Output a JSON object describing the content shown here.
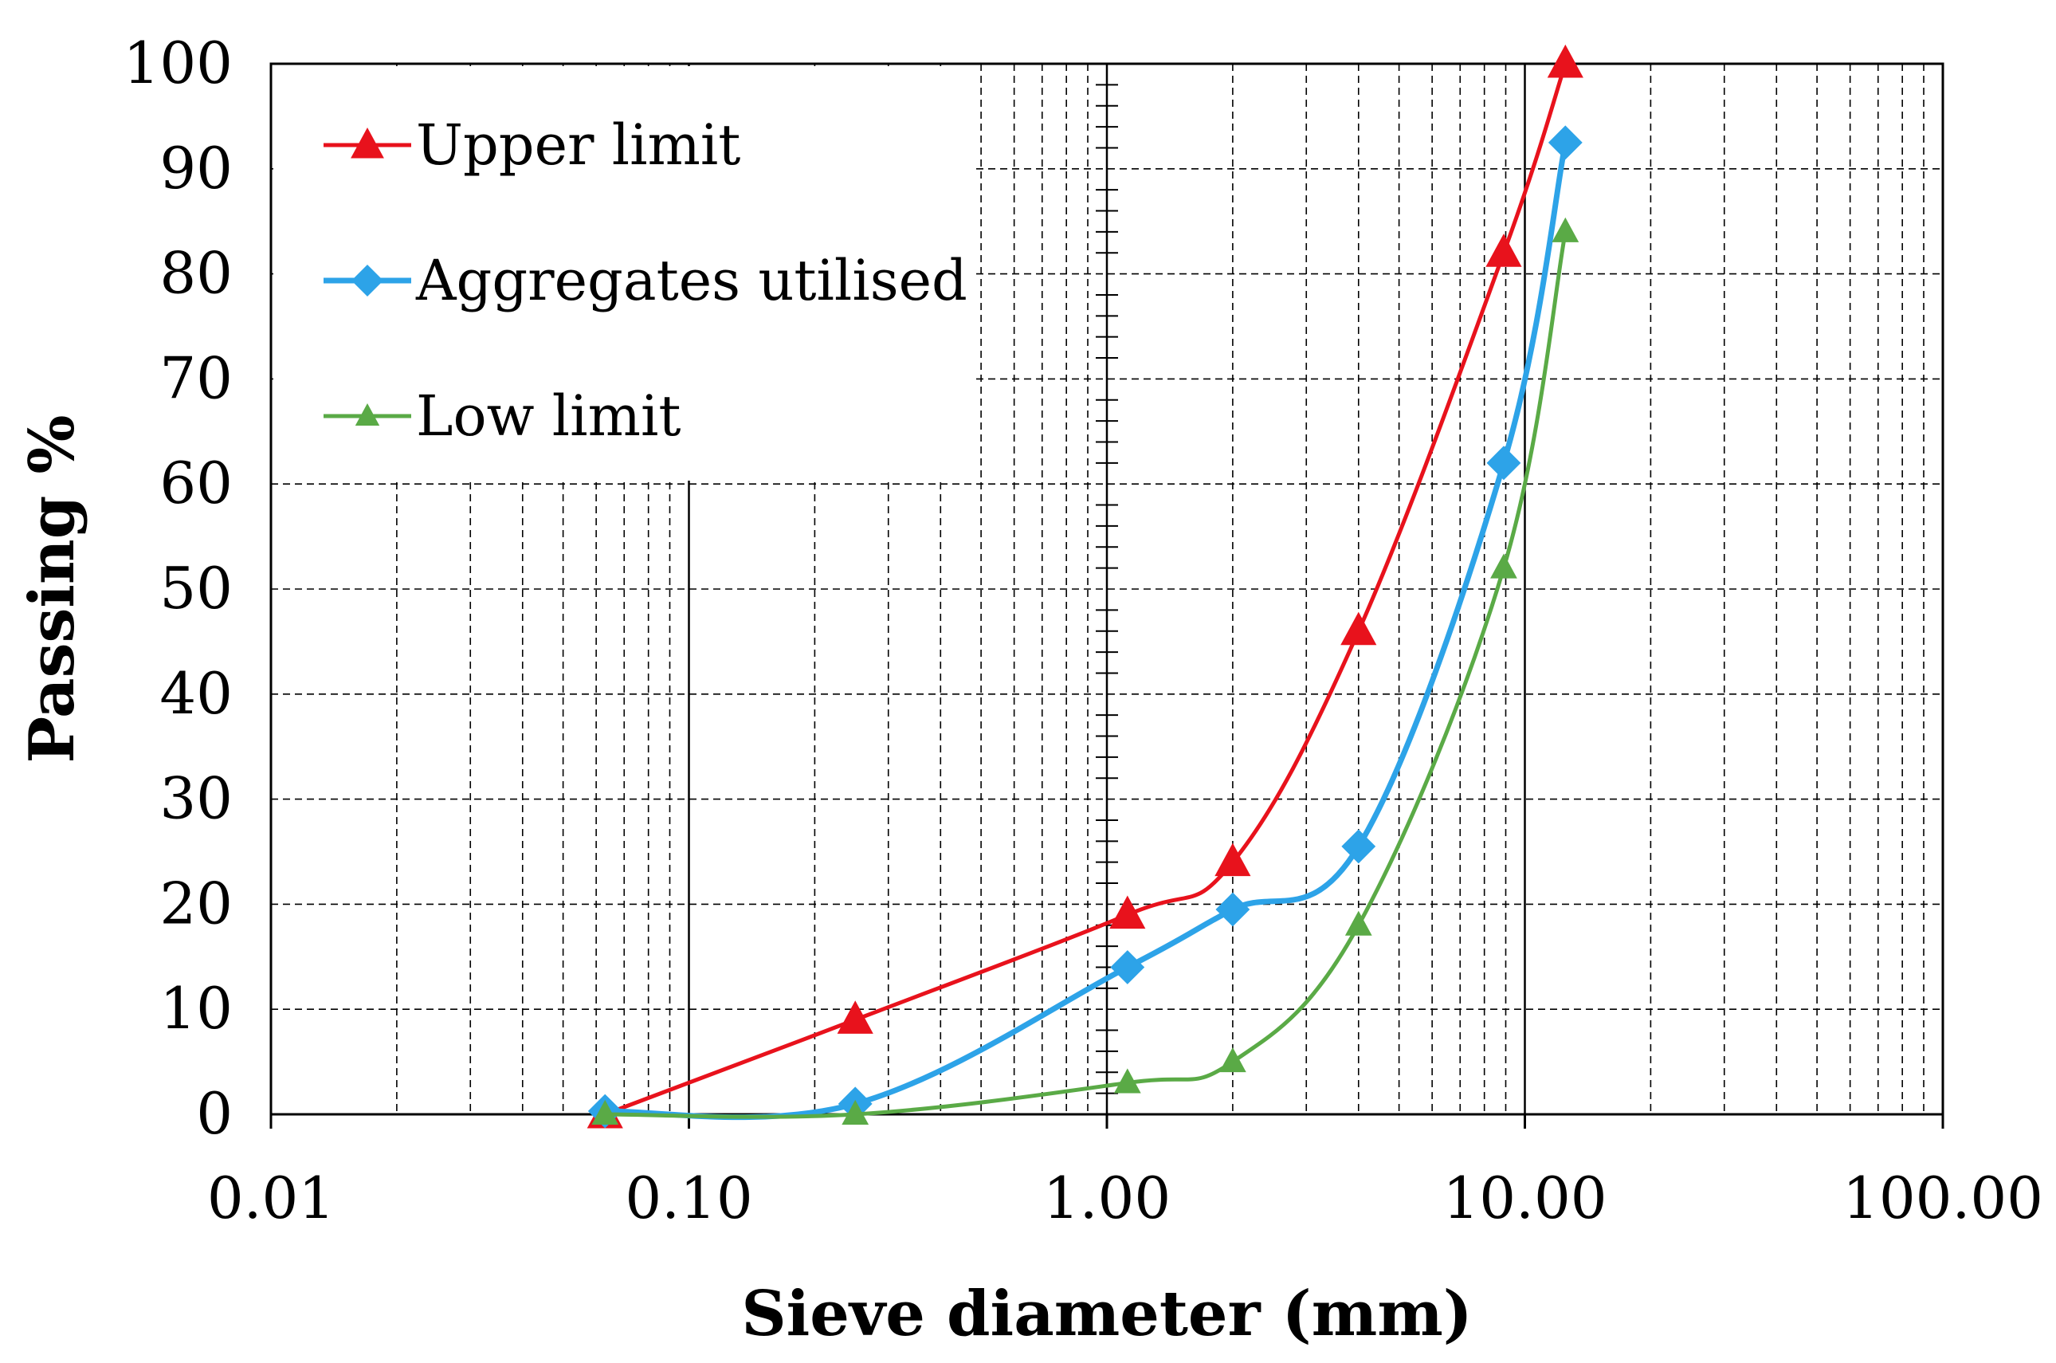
{
  "chart_data": {
    "type": "line",
    "xscale": "log",
    "xlabel": "Sieve diameter (mm)",
    "ylabel": "Passing %",
    "xlim": [
      0.01,
      100
    ],
    "ylim": [
      0,
      100
    ],
    "grid": true,
    "legend_position": "top-left",
    "x_tick_labels": [
      "0.01",
      "0.10",
      "1.00",
      "10.00",
      "100.00"
    ],
    "y_tick_labels": [
      "0",
      "10",
      "20",
      "30",
      "40",
      "50",
      "60",
      "70",
      "80",
      "90",
      "100"
    ],
    "series": [
      {
        "name": "Upper limit",
        "color": "#e8121c",
        "marker": "triangle",
        "x": [
          0.063,
          0.25,
          1.12,
          2.0,
          4.0,
          8.9,
          12.5
        ],
        "values": [
          0,
          9,
          19,
          24,
          46,
          82,
          100
        ]
      },
      {
        "name": "Aggregates utilised",
        "color": "#2da3e8",
        "marker": "diamond",
        "x": [
          0.063,
          0.25,
          1.12,
          2.0,
          4.0,
          8.9,
          12.5
        ],
        "values": [
          0.3,
          1,
          14,
          19.5,
          25.5,
          62,
          92.5
        ]
      },
      {
        "name": "Low limit",
        "color": "#5aaa46",
        "marker": "triangle",
        "x": [
          0.063,
          0.25,
          1.12,
          2.0,
          4.0,
          8.9,
          12.5
        ],
        "values": [
          0,
          0,
          3,
          5,
          18,
          52,
          84
        ]
      }
    ]
  }
}
